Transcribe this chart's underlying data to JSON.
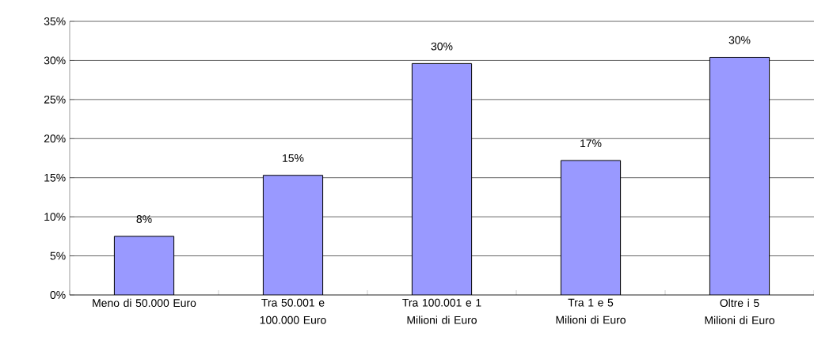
{
  "chart_data": {
    "type": "bar",
    "categories": [
      "Meno di 50.000 Euro",
      "Tra 50.001 e 100.000 Euro",
      "Tra 100.001 e 1 Milioni di Euro",
      "Tra 1 e 5 Milioni di Euro",
      "Oltre i 5 Milioni di Euro"
    ],
    "values": [
      7.5,
      15.3,
      29.6,
      17.2,
      30.4
    ],
    "value_labels": [
      "8%",
      "15%",
      "30%",
      "17%",
      "30%"
    ],
    "color": "#9999ff",
    "ylim": [
      0,
      35
    ],
    "yticks": [
      {
        "value": 0,
        "label": "0%"
      },
      {
        "value": 5,
        "label": "5%"
      },
      {
        "value": 10,
        "label": "10%"
      },
      {
        "value": 15,
        "label": "15%"
      },
      {
        "value": 20,
        "label": "20%"
      },
      {
        "value": 25,
        "label": "25%"
      },
      {
        "value": 30,
        "label": "30%"
      },
      {
        "value": 35,
        "label": "35%"
      }
    ],
    "grid": "y"
  }
}
